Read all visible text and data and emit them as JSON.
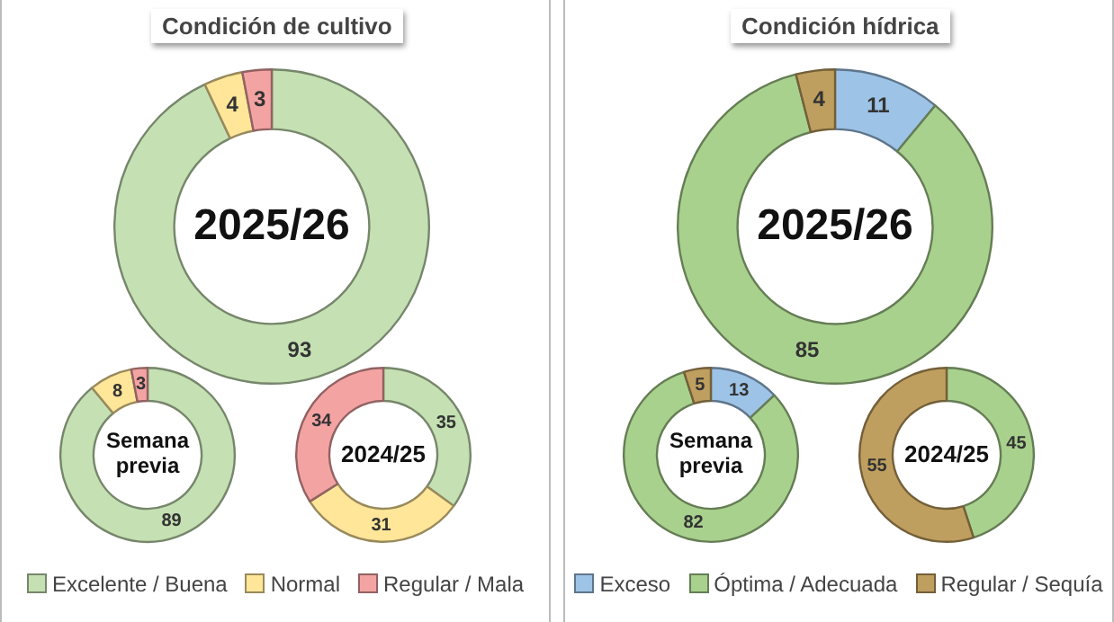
{
  "chart_data": [
    {
      "type": "donut",
      "title": "Condición de cultivo",
      "categories": [
        "Excelente / Buena",
        "Normal",
        "Regular / Mala"
      ],
      "colors": [
        "#c5e0b3",
        "#ffe699",
        "#f4a3a3"
      ],
      "data_labels": true,
      "legend": "bottom",
      "series": [
        {
          "name": "2025/26",
          "values": [
            93,
            4,
            3
          ]
        },
        {
          "name": "Semana previa",
          "values": [
            89,
            8,
            3
          ]
        },
        {
          "name": "2024/25",
          "values": [
            35,
            31,
            34
          ]
        }
      ]
    },
    {
      "type": "donut",
      "title": "Condición hídrica",
      "categories": [
        "Exceso",
        "Óptima / Adecuada",
        "Regular / Sequía"
      ],
      "colors": [
        "#9dc3e6",
        "#a9d18e",
        "#bf9f5f"
      ],
      "data_labels": true,
      "legend": "bottom",
      "series": [
        {
          "name": "2025/26",
          "values": [
            11,
            85,
            4
          ]
        },
        {
          "name": "Semana previa",
          "values": [
            13,
            82,
            5
          ]
        },
        {
          "name": "2024/25",
          "values": [
            null,
            45,
            55
          ]
        }
      ]
    }
  ]
}
